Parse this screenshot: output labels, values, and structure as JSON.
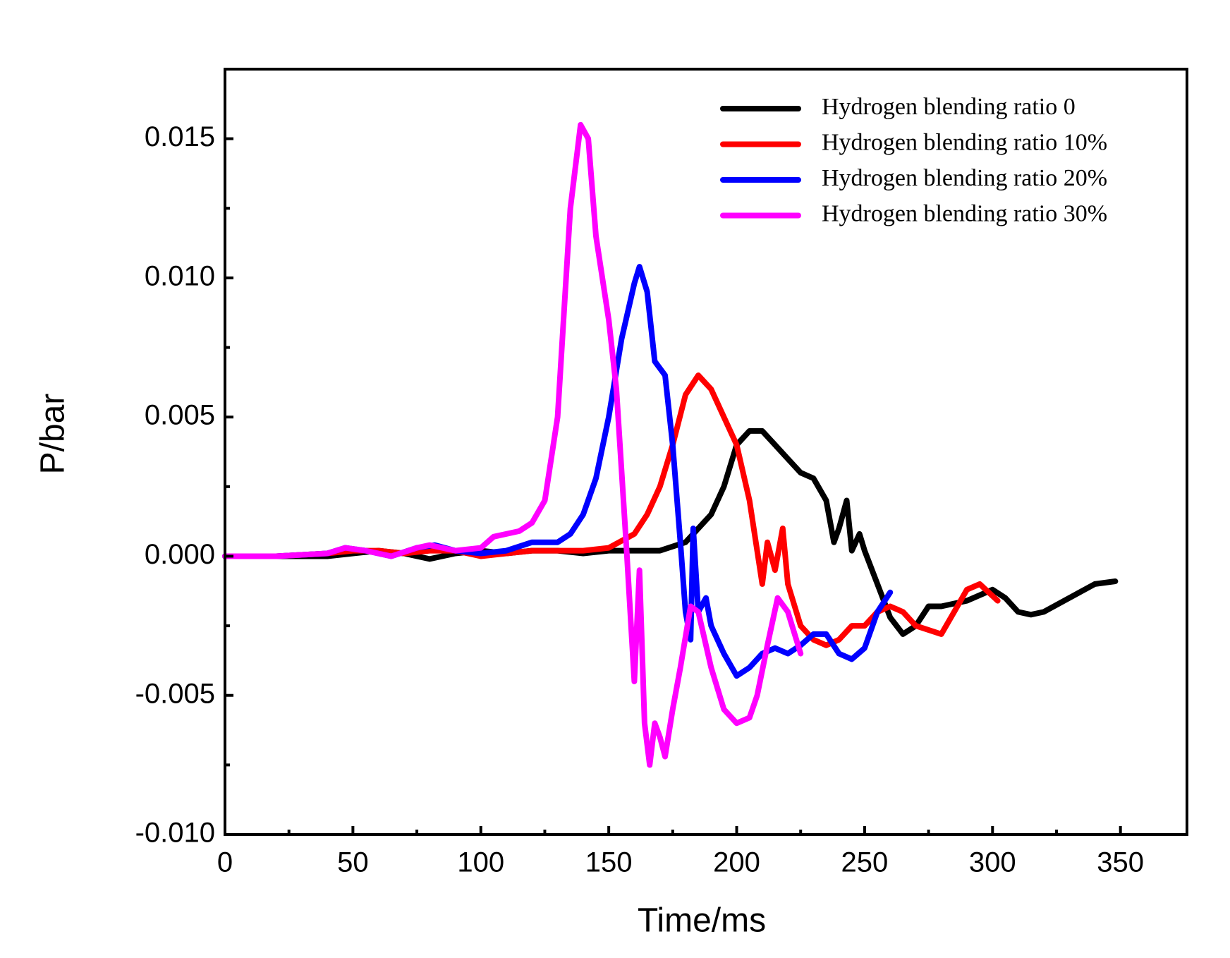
{
  "chart_data": {
    "type": "line",
    "xlabel": "Time/ms",
    "ylabel": "P/bar",
    "xlim": [
      0,
      376
    ],
    "ylim": [
      -0.01,
      0.0175
    ],
    "xticks": [
      0,
      50,
      100,
      150,
      200,
      250,
      300,
      350
    ],
    "yticks": [
      {
        "value": -0.01,
        "label": "-0.010"
      },
      -0.005,
      {
        "value": 0,
        "label": "0.000"
      },
      0.005,
      {
        "value": 0.01,
        "label": "0.010"
      },
      0.015
    ],
    "legend": "upper right",
    "series": [
      {
        "name": "Hydrogen blending ratio 0",
        "color": "#000000",
        "x": [
          0,
          20,
          40,
          50,
          60,
          70,
          80,
          90,
          100,
          110,
          120,
          130,
          140,
          150,
          160,
          170,
          180,
          190,
          195,
          200,
          205,
          210,
          215,
          220,
          225,
          230,
          235,
          238,
          240,
          243,
          245,
          248,
          250,
          255,
          260,
          265,
          270,
          275,
          280,
          290,
          300,
          305,
          310,
          315,
          320,
          330,
          340,
          348
        ],
        "values": [
          0,
          0,
          0,
          0.0001,
          0.0002,
          0.0001,
          -0.0001,
          0.0001,
          0.0002,
          0.0001,
          0.0002,
          0.0002,
          0.0001,
          0.0002,
          0.0002,
          0.0002,
          0.0005,
          0.0015,
          0.0025,
          0.004,
          0.0045,
          0.0045,
          0.004,
          0.0035,
          0.003,
          0.0028,
          0.002,
          0.0005,
          0.001,
          0.002,
          0.0002,
          0.0008,
          0.0002,
          -0.001,
          -0.0022,
          -0.0028,
          -0.0025,
          -0.0018,
          -0.0018,
          -0.0016,
          -0.0012,
          -0.0015,
          -0.002,
          -0.0021,
          -0.002,
          -0.0015,
          -0.001,
          -0.0009
        ]
      },
      {
        "name": "Hydrogen blending ratio 10%",
        "color": "#ff0000",
        "x": [
          0,
          20,
          40,
          50,
          60,
          70,
          80,
          90,
          100,
          110,
          120,
          140,
          150,
          160,
          165,
          170,
          175,
          180,
          185,
          190,
          195,
          200,
          205,
          210,
          212,
          215,
          218,
          220,
          225,
          230,
          235,
          240,
          245,
          250,
          255,
          260,
          265,
          270,
          280,
          285,
          290,
          295,
          302
        ],
        "values": [
          0,
          0,
          0.0001,
          0.0002,
          0.0002,
          0.0001,
          0.0002,
          0.0002,
          0,
          0.0001,
          0.0002,
          0.0002,
          0.0003,
          0.0008,
          0.0015,
          0.0025,
          0.004,
          0.0058,
          0.0065,
          0.006,
          0.005,
          0.004,
          0.002,
          -0.001,
          0.0005,
          -0.0005,
          0.001,
          -0.001,
          -0.0025,
          -0.003,
          -0.0032,
          -0.003,
          -0.0025,
          -0.0025,
          -0.002,
          -0.0018,
          -0.002,
          -0.0025,
          -0.0028,
          -0.002,
          -0.0012,
          -0.001,
          -0.0016
        ]
      },
      {
        "name": "Hydrogen blending ratio 20%",
        "color": "#0000ff",
        "x": [
          0,
          20,
          40,
          47,
          55,
          65,
          75,
          82,
          90,
          100,
          110,
          120,
          130,
          135,
          140,
          145,
          150,
          155,
          160,
          162,
          165,
          168,
          172,
          175,
          178,
          180,
          182,
          183,
          185,
          188,
          190,
          195,
          200,
          205,
          210,
          215,
          220,
          225,
          230,
          235,
          240,
          245,
          250,
          255,
          260
        ],
        "values": [
          0,
          0,
          0.0001,
          0.0003,
          0.0002,
          0,
          0.0003,
          0.0004,
          0.0002,
          0.0001,
          0.0002,
          0.0005,
          0.0005,
          0.0008,
          0.0015,
          0.0028,
          0.005,
          0.0078,
          0.0098,
          0.0104,
          0.0095,
          0.007,
          0.0065,
          0.004,
          0.0005,
          -0.002,
          -0.003,
          0.001,
          -0.002,
          -0.0015,
          -0.0025,
          -0.0035,
          -0.0043,
          -0.004,
          -0.0035,
          -0.0033,
          -0.0035,
          -0.0032,
          -0.0028,
          -0.0028,
          -0.0035,
          -0.0037,
          -0.0033,
          -0.002,
          -0.0013
        ]
      },
      {
        "name": "Hydrogen blending ratio 30%",
        "color": "#ff00ff",
        "x": [
          0,
          20,
          40,
          47,
          55,
          65,
          75,
          80,
          90,
          100,
          105,
          115,
          120,
          125,
          130,
          135,
          139,
          142,
          145,
          150,
          153,
          157,
          160,
          162,
          164,
          166,
          168,
          170,
          172,
          175,
          178,
          182,
          185,
          190,
          195,
          200,
          205,
          208,
          212,
          216,
          220,
          225
        ],
        "values": [
          0,
          0,
          0.0001,
          0.0003,
          0.0002,
          0,
          0.0003,
          0.0004,
          0.0002,
          0.0003,
          0.0007,
          0.0009,
          0.0012,
          0.002,
          0.005,
          0.0125,
          0.0155,
          0.015,
          0.0115,
          0.0085,
          0.006,
          0.0002,
          -0.0045,
          -0.0005,
          -0.006,
          -0.0075,
          -0.006,
          -0.0065,
          -0.0072,
          -0.0055,
          -0.004,
          -0.0018,
          -0.002,
          -0.004,
          -0.0055,
          -0.006,
          -0.0058,
          -0.005,
          -0.0032,
          -0.0015,
          -0.002,
          -0.0035
        ]
      }
    ]
  }
}
